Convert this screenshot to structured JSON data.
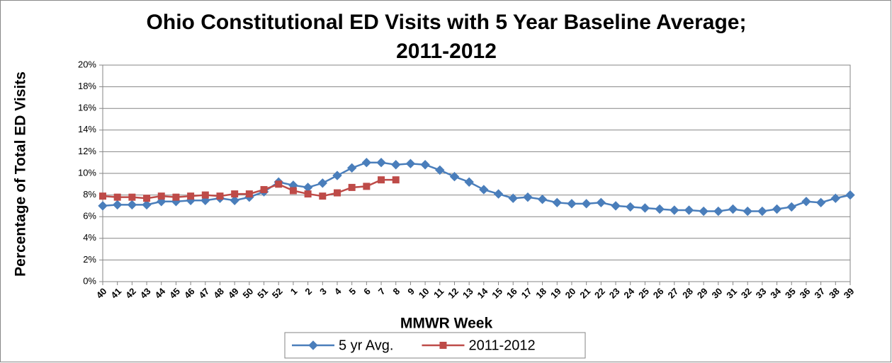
{
  "chart_data": {
    "type": "line",
    "title": [
      "Ohio Constitutional ED Visits with 5 Year Baseline Average;",
      "2011-2012"
    ],
    "x_label": "MMWR Week",
    "y_label": "Percentage of Total ED Visits",
    "categories": [
      "40",
      "41",
      "42",
      "43",
      "44",
      "45",
      "46",
      "47",
      "48",
      "49",
      "50",
      "51",
      "52",
      "1",
      "2",
      "3",
      "4",
      "5",
      "6",
      "7",
      "8",
      "9",
      "10",
      "11",
      "12",
      "13",
      "14",
      "15",
      "16",
      "17",
      "18",
      "19",
      "20",
      "21",
      "22",
      "23",
      "24",
      "25",
      "26",
      "27",
      "28",
      "29",
      "30",
      "31",
      "32",
      "33",
      "34",
      "35",
      "36",
      "37",
      "38",
      "39"
    ],
    "series": [
      {
        "name": "5 yr Avg.",
        "color": "#4a7ebb",
        "marker": "diamond",
        "values": [
          7.0,
          7.1,
          7.1,
          7.1,
          7.4,
          7.4,
          7.5,
          7.5,
          7.7,
          7.5,
          7.8,
          8.3,
          9.2,
          8.9,
          8.7,
          9.1,
          9.8,
          10.5,
          11.0,
          11.0,
          10.8,
          10.9,
          10.8,
          10.3,
          9.7,
          9.2,
          8.5,
          8.1,
          7.7,
          7.8,
          7.6,
          7.3,
          7.2,
          7.2,
          7.3,
          7.0,
          6.9,
          6.8,
          6.7,
          6.6,
          6.6,
          6.5,
          6.5,
          6.7,
          6.5,
          6.5,
          6.7,
          6.9,
          7.4,
          7.3,
          7.7,
          8.0
        ]
      },
      {
        "name": "2011-2012",
        "color": "#be4b48",
        "marker": "square",
        "values": [
          7.9,
          7.8,
          7.8,
          7.7,
          7.9,
          7.8,
          7.9,
          8.0,
          7.9,
          8.1,
          8.1,
          8.5,
          9.0,
          8.4,
          8.1,
          7.9,
          8.2,
          8.7,
          8.8,
          9.4,
          9.4,
          null,
          null,
          null,
          null,
          null,
          null,
          null,
          null,
          null,
          null,
          null,
          null,
          null,
          null,
          null,
          null,
          null,
          null,
          null,
          null,
          null,
          null,
          null,
          null,
          null,
          null,
          null,
          null,
          null,
          null,
          null
        ]
      }
    ],
    "ylim": [
      0,
      20
    ],
    "yticks": [
      {
        "value": 0,
        "label": "0%"
      },
      {
        "value": 2,
        "label": "2%"
      },
      {
        "value": 4,
        "label": "4%"
      },
      {
        "value": 6,
        "label": "6%"
      },
      {
        "value": 8,
        "label": "8%"
      },
      {
        "value": 10,
        "label": "10%"
      },
      {
        "value": 12,
        "label": "12%"
      },
      {
        "value": 14,
        "label": "14%"
      },
      {
        "value": 16,
        "label": "16%"
      },
      {
        "value": 18,
        "label": "18%"
      },
      {
        "value": 20,
        "label": "20%"
      }
    ],
    "grid": true,
    "legend": "bottom"
  }
}
